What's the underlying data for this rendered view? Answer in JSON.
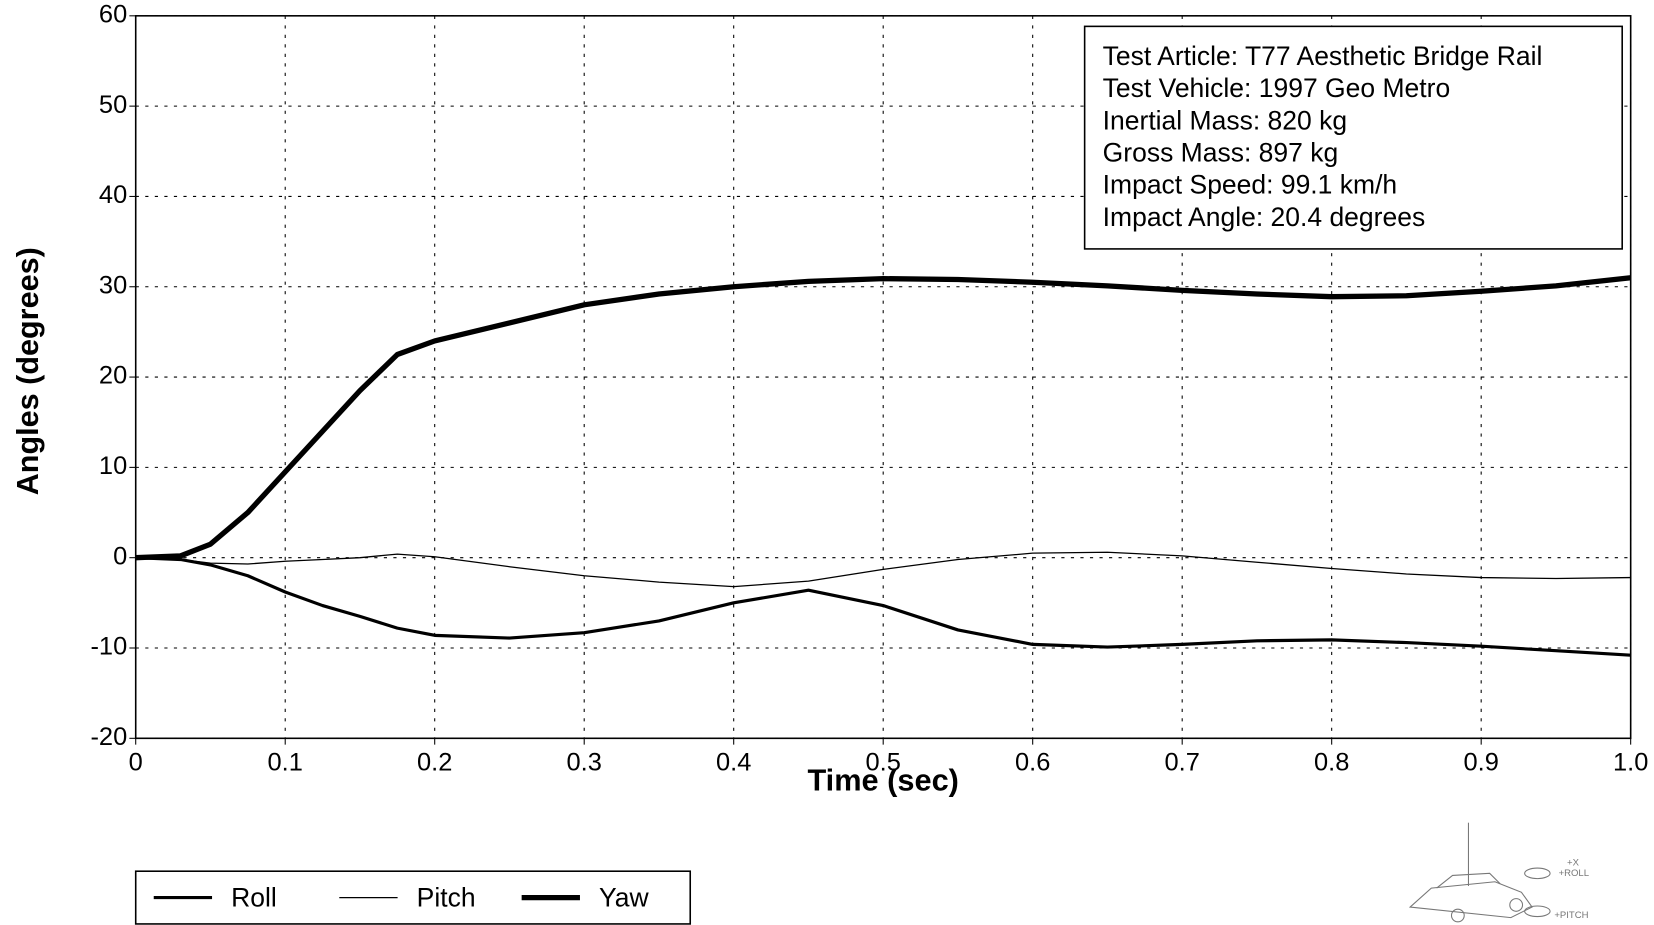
{
  "chart_data": {
    "type": "line",
    "x_label": "Time (sec)",
    "y_label": "Angles (degrees)",
    "x": [
      0,
      0.03,
      0.05,
      0.075,
      0.1,
      0.125,
      0.15,
      0.175,
      0.2,
      0.25,
      0.3,
      0.35,
      0.4,
      0.45,
      0.5,
      0.55,
      0.6,
      0.65,
      0.7,
      0.75,
      0.8,
      0.85,
      0.9,
      0.95,
      1.0
    ],
    "series": [
      {
        "name": "Roll",
        "color": "#000000",
        "line_width": 3,
        "values": [
          0,
          -0.2,
          -0.8,
          -2,
          -3.8,
          -5.3,
          -6.5,
          -7.8,
          -8.6,
          -8.9,
          -8.3,
          -7,
          -5,
          -3.6,
          -5.3,
          -8,
          -9.6,
          -9.9,
          -9.6,
          -9.2,
          -9.1,
          -9.4,
          -9.8,
          -10.3,
          -10.8
        ]
      },
      {
        "name": "Pitch",
        "color": "#000000",
        "line_width": 1.2,
        "values": [
          0,
          -0.2,
          -0.6,
          -0.7,
          -0.4,
          -0.2,
          0,
          0.4,
          0.1,
          -1,
          -2,
          -2.7,
          -3.2,
          -2.6,
          -1.3,
          -0.2,
          0.5,
          0.6,
          0.2,
          -0.5,
          -1.2,
          -1.8,
          -2.2,
          -2.3,
          -2.2
        ]
      },
      {
        "name": "Yaw",
        "color": "#000000",
        "line_width": 5,
        "values": [
          0,
          0.2,
          1.5,
          5,
          9.5,
          14,
          18.5,
          22.5,
          24,
          26,
          28,
          29.2,
          30,
          30.6,
          30.9,
          30.8,
          30.5,
          30.1,
          29.6,
          29.2,
          28.9,
          29,
          29.5,
          30.1,
          31
        ]
      }
    ],
    "xlim": [
      0,
      1
    ],
    "ylim": [
      -20,
      60
    ],
    "xticks": [
      0,
      0.1,
      0.2,
      0.3,
      0.4,
      0.5,
      0.6,
      0.7,
      0.8,
      0.9,
      {
        "value": 1,
        "label": "1.0"
      }
    ],
    "yticks": [
      -20,
      -10,
      0,
      10,
      20,
      30,
      40,
      50,
      60
    ],
    "grid": true,
    "annotations": [
      "Test Article: T77 Aesthetic Bridge Rail",
      "Test Vehicle: 1997 Geo Metro",
      "Inertial Mass: 820 kg",
      "Gross Mass: 897 kg",
      "Impact Speed: 99.1 km/h",
      "Impact Angle: 20.4 degrees"
    ],
    "axis_icon_labels": [
      "+X",
      "+ROLL",
      "+PITCH"
    ]
  }
}
